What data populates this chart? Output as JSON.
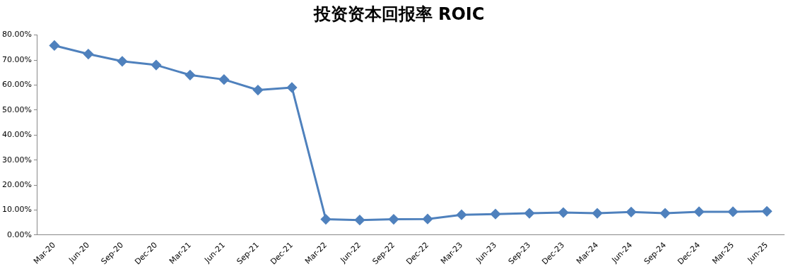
{
  "chart_data": {
    "type": "line",
    "title": "投资资本回报率 ROIC",
    "categories": [
      "Mar-20",
      "Jun-20",
      "Sep-20",
      "Dec-20",
      "Mar-21",
      "Jun-21",
      "Sep-21",
      "Dec-21",
      "Mar-22",
      "Jun-22",
      "Sep-22",
      "Dec-22",
      "Mar-23",
      "Jun-23",
      "Sep-23",
      "Dec-23",
      "Mar-24",
      "Jun-24",
      "Sep-24",
      "Dec-24",
      "Mar-25",
      "Jun-25"
    ],
    "series": [
      {
        "color": "#4f81bd",
        "values": [
          75.8,
          72.4,
          69.5,
          68,
          64,
          62.2,
          58,
          59,
          6.3,
          6,
          6.3,
          6.4,
          8.1,
          8.4,
          8.7,
          9,
          8.7,
          9.2,
          8.7,
          9.3,
          9.3,
          9.5
        ]
      }
    ],
    "ylim": [
      0,
      80
    ],
    "yticks": [
      {
        "value": 0,
        "label": "0.00%"
      },
      {
        "value": 10,
        "label": "10.00%"
      },
      {
        "value": 20,
        "label": "20.00%"
      },
      {
        "value": 30,
        "label": "30.00%"
      },
      {
        "value": 40,
        "label": "40.00%"
      },
      {
        "value": 50,
        "label": "50.00%"
      },
      {
        "value": 60,
        "label": "60.00%"
      },
      {
        "value": 70,
        "label": "70.00%"
      },
      {
        "value": 80,
        "label": "80.00%"
      }
    ],
    "grid": false,
    "legend": false,
    "marker": "diamond",
    "line_style": "solid"
  }
}
